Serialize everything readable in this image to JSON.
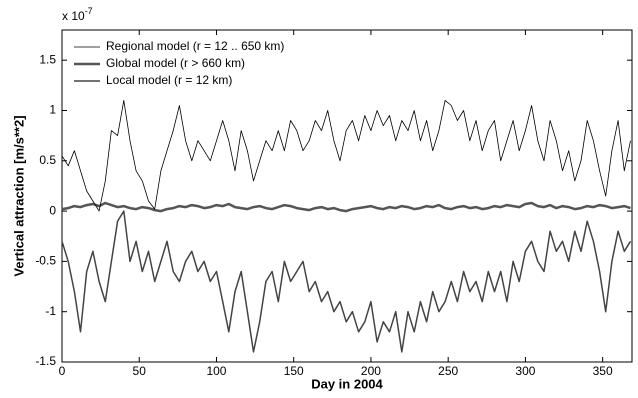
{
  "chart_data": {
    "type": "line",
    "xlabel": "Day in 2004",
    "ylabel": "Vertical attraction [m/s**2]",
    "y_scale_label": {
      "base": "x 10",
      "exponent": "-7"
    },
    "xlim": [
      0,
      369
    ],
    "ylim": [
      -1.5,
      1.8
    ],
    "xticks": [
      0,
      50,
      100,
      150,
      200,
      250,
      300,
      350
    ],
    "yticks": [
      -1.5,
      -1,
      -0.5,
      0,
      0.5,
      1,
      1.5
    ],
    "legend": "upper left",
    "x": [
      0,
      4,
      8,
      12,
      16,
      20,
      24,
      28,
      32,
      36,
      40,
      44,
      48,
      52,
      56,
      60,
      64,
      68,
      72,
      76,
      80,
      84,
      88,
      92,
      96,
      100,
      104,
      108,
      112,
      116,
      120,
      124,
      128,
      132,
      136,
      140,
      144,
      148,
      152,
      156,
      160,
      164,
      168,
      172,
      176,
      180,
      184,
      188,
      192,
      196,
      200,
      204,
      208,
      212,
      216,
      220,
      224,
      228,
      232,
      236,
      240,
      244,
      248,
      252,
      256,
      260,
      264,
      268,
      272,
      276,
      280,
      284,
      288,
      292,
      296,
      300,
      304,
      308,
      312,
      316,
      320,
      324,
      328,
      332,
      336,
      340,
      344,
      348,
      352,
      356,
      360,
      364,
      368
    ],
    "series": [
      {
        "name": "Regional model (r = 12 .. 650 km)",
        "color": "#000000",
        "line_width": 0.8,
        "values": [
          0.55,
          0.45,
          0.6,
          0.4,
          0.2,
          0.1,
          0.0,
          0.3,
          0.8,
          0.75,
          1.1,
          0.7,
          0.4,
          0.3,
          0.1,
          0.02,
          0.4,
          0.6,
          0.8,
          1.05,
          0.7,
          0.5,
          0.7,
          0.6,
          0.5,
          0.7,
          0.9,
          0.7,
          0.4,
          0.8,
          0.6,
          0.3,
          0.5,
          0.7,
          0.6,
          0.8,
          0.6,
          0.9,
          0.8,
          0.6,
          0.7,
          0.9,
          0.8,
          1.0,
          0.7,
          0.5,
          0.8,
          0.9,
          0.7,
          0.95,
          0.8,
          1.0,
          0.85,
          0.95,
          0.7,
          0.9,
          0.8,
          1.0,
          0.7,
          0.9,
          0.6,
          0.8,
          1.1,
          1.05,
          0.9,
          1.0,
          0.7,
          0.9,
          0.6,
          0.8,
          0.9,
          0.5,
          0.7,
          0.9,
          0.6,
          0.8,
          1.05,
          0.7,
          0.5,
          0.9,
          0.7,
          0.4,
          0.6,
          0.3,
          0.5,
          0.9,
          0.7,
          0.4,
          0.15,
          0.6,
          0.9,
          0.4,
          0.7
        ]
      },
      {
        "name": "Global model (r > 660 km)",
        "color": "#555555",
        "line_width": 2.5,
        "values": [
          0.02,
          0.03,
          0.05,
          0.04,
          0.06,
          0.07,
          0.05,
          0.08,
          0.06,
          0.04,
          0.05,
          0.03,
          0.02,
          0.04,
          0.03,
          0.01,
          0.0,
          0.02,
          0.03,
          0.05,
          0.04,
          0.06,
          0.05,
          0.03,
          0.04,
          0.06,
          0.05,
          0.07,
          0.04,
          0.03,
          0.02,
          0.04,
          0.05,
          0.03,
          0.02,
          0.04,
          0.06,
          0.05,
          0.03,
          0.02,
          0.01,
          0.03,
          0.04,
          0.02,
          0.03,
          0.01,
          0.0,
          0.02,
          0.03,
          0.04,
          0.05,
          0.03,
          0.02,
          0.04,
          0.03,
          0.05,
          0.04,
          0.02,
          0.03,
          0.05,
          0.04,
          0.06,
          0.03,
          0.02,
          0.04,
          0.05,
          0.03,
          0.04,
          0.02,
          0.03,
          0.05,
          0.04,
          0.06,
          0.05,
          0.04,
          0.07,
          0.08,
          0.05,
          0.04,
          0.06,
          0.03,
          0.05,
          0.04,
          0.02,
          0.03,
          0.05,
          0.04,
          0.06,
          0.05,
          0.03,
          0.04,
          0.05,
          0.03
        ]
      },
      {
        "name": "Local model (r = 12 km)",
        "color": "#444444",
        "line_width": 1.5,
        "values": [
          -0.3,
          -0.5,
          -0.8,
          -1.2,
          -0.6,
          -0.4,
          -0.7,
          -0.9,
          -0.5,
          -0.1,
          0.0,
          -0.5,
          -0.3,
          -0.6,
          -0.4,
          -0.7,
          -0.5,
          -0.3,
          -0.6,
          -0.7,
          -0.5,
          -0.4,
          -0.6,
          -0.5,
          -0.7,
          -0.6,
          -0.9,
          -1.2,
          -0.8,
          -0.6,
          -1.0,
          -1.4,
          -1.1,
          -0.7,
          -0.6,
          -0.9,
          -0.5,
          -0.7,
          -0.6,
          -0.5,
          -0.8,
          -0.7,
          -0.9,
          -0.8,
          -1.0,
          -0.9,
          -1.1,
          -1.0,
          -1.2,
          -1.1,
          -0.9,
          -1.3,
          -1.1,
          -1.2,
          -1.0,
          -1.4,
          -1.0,
          -1.2,
          -0.9,
          -1.1,
          -0.8,
          -1.0,
          -0.9,
          -0.7,
          -0.9,
          -0.6,
          -0.8,
          -0.7,
          -0.9,
          -0.6,
          -0.8,
          -0.6,
          -0.9,
          -0.5,
          -0.7,
          -0.4,
          -0.3,
          -0.5,
          -0.6,
          -0.2,
          -0.4,
          -0.3,
          -0.5,
          -0.2,
          -0.4,
          -0.1,
          -0.3,
          -0.6,
          -1.0,
          -0.5,
          -0.2,
          -0.4,
          -0.3
        ]
      }
    ]
  }
}
